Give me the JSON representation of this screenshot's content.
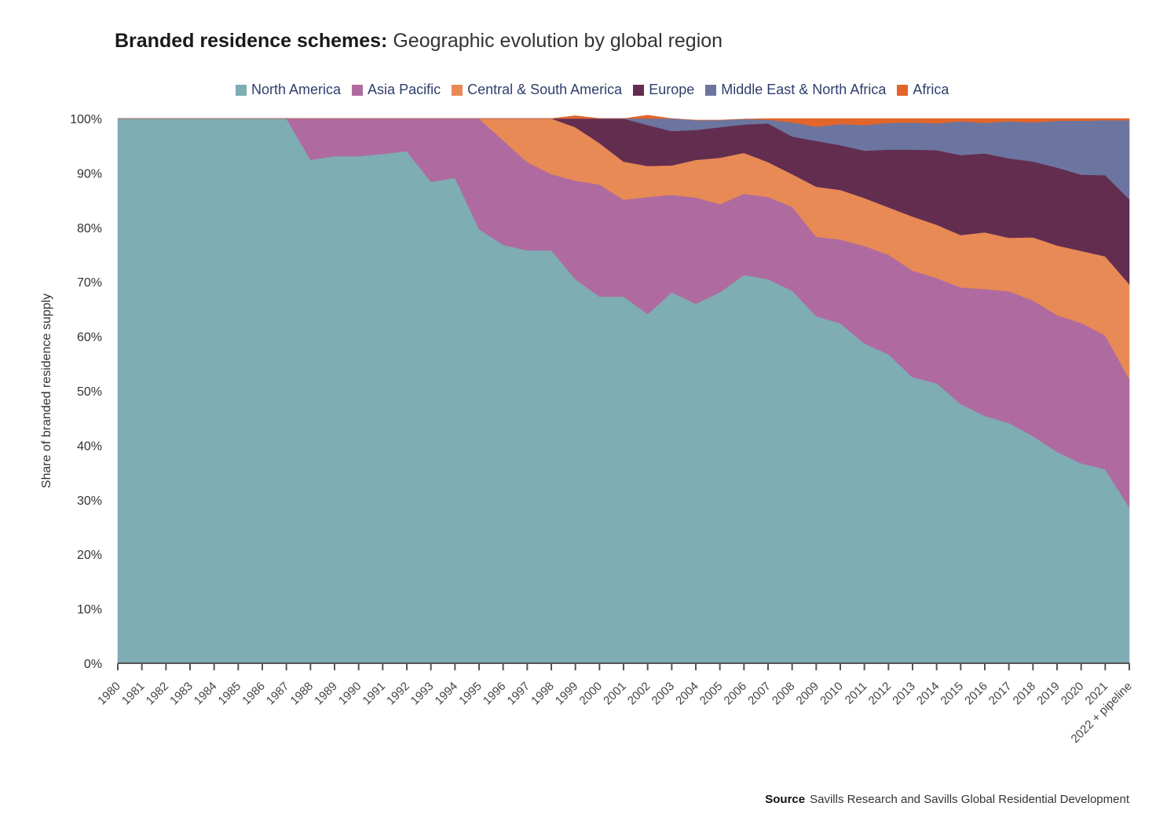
{
  "title_bold": "Branded residence schemes:",
  "title_rest": "Geographic evolution by global region",
  "source_label": "Source",
  "source_text": "Savills Research and Savills Global Residential Development",
  "chart_data": {
    "type": "area",
    "stacked": true,
    "normalized": true,
    "title": "Branded residence schemes: Geographic evolution by global region",
    "xlabel": "",
    "ylabel": "Share of branded residence supply",
    "ylim": [
      0,
      100
    ],
    "yticks": [
      "0%",
      "10%",
      "20%",
      "30%",
      "40%",
      "50%",
      "60%",
      "70%",
      "80%",
      "90%",
      "100%"
    ],
    "legend_position": "top",
    "categories": [
      "1980",
      "1981",
      "1982",
      "1983",
      "1984",
      "1985",
      "1986",
      "1987",
      "1988",
      "1989",
      "1990",
      "1991",
      "1992",
      "1993",
      "1994",
      "1995",
      "1996",
      "1997",
      "1998",
      "1999",
      "2000",
      "2001",
      "2002",
      "2003",
      "2004",
      "2005",
      "2006",
      "2007",
      "2008",
      "2009",
      "2010",
      "2011",
      "2012",
      "2013",
      "2014",
      "2015",
      "2016",
      "2017",
      "2018",
      "2019",
      "2020",
      "2021",
      "2022 + pipeline"
    ],
    "series": [
      {
        "name": "North America",
        "color": "#7eadb3",
        "values": [
          100,
          100,
          100,
          100,
          100,
          100,
          100,
          100,
          92.4,
          93.1,
          93.1,
          93.5,
          94,
          88.4,
          89.1,
          79.7,
          76.8,
          75.8,
          75.8,
          70.5,
          67.3,
          67.3,
          64.1,
          68.1,
          66,
          68.1,
          71.3,
          70.5,
          68.4,
          63.7,
          62.4,
          58.7,
          56.7,
          52.5,
          51.4,
          47.6,
          45.4,
          44.1,
          41.7,
          38.8,
          36.7,
          35.6,
          28.6
        ],
        "data_name": "north-america"
      },
      {
        "name": "Asia Pacific",
        "color": "#af6ba0",
        "values": [
          0,
          0,
          0,
          0,
          0,
          0,
          0,
          0,
          7.6,
          6.9,
          6.9,
          6.5,
          6,
          11.6,
          10.9,
          20.3,
          19.2,
          16.2,
          14,
          18.1,
          20.6,
          17.8,
          21.5,
          17.9,
          19.5,
          16.2,
          14.9,
          15.1,
          15.4,
          14.6,
          15.4,
          17.9,
          18.3,
          19.6,
          19.3,
          21.4,
          23.3,
          24.2,
          24.9,
          25.1,
          25.8,
          24.6,
          23.6
        ],
        "data_name": "asia-pacific"
      },
      {
        "name": "Central & South America",
        "color": "#e88a55",
        "values": [
          0,
          0,
          0,
          0,
          0,
          0,
          0,
          0,
          0,
          0,
          0,
          0,
          0,
          0,
          0,
          0,
          4,
          8,
          10.2,
          9.8,
          7.6,
          7,
          5.7,
          5.4,
          6.9,
          8.5,
          7.5,
          6.4,
          6,
          9.2,
          9.1,
          8.8,
          8.7,
          9.9,
          9.8,
          9.6,
          10.4,
          9.8,
          11.6,
          12.8,
          13.2,
          14.5,
          17.4
        ],
        "data_name": "central-south-america"
      },
      {
        "name": "Europe",
        "color": "#632d50",
        "values": [
          0,
          0,
          0,
          0,
          0,
          0,
          0,
          0,
          0,
          0,
          0,
          0,
          0,
          0,
          0,
          0,
          0,
          0,
          0,
          2.1,
          4.5,
          7.9,
          7.5,
          6.3,
          5.5,
          5.6,
          5.2,
          7.1,
          6.9,
          8.4,
          8.2,
          8.7,
          10.6,
          12.3,
          13.7,
          14.7,
          14.5,
          14.6,
          13.9,
          14.3,
          14,
          14.9,
          15.6
        ],
        "data_name": "europe"
      },
      {
        "name": "Middle East & North Africa",
        "color": "#6c759f",
        "values": [
          0,
          0,
          0,
          0,
          0,
          0,
          0,
          0,
          0,
          0,
          0,
          0,
          0,
          0,
          0,
          0,
          0,
          0,
          0,
          0,
          0,
          0,
          1.8,
          2.3,
          1.8,
          1.3,
          1,
          0.7,
          2.6,
          2.6,
          3.9,
          4.7,
          4.9,
          5,
          4.9,
          6.2,
          5.6,
          6.8,
          7.2,
          8.6,
          9.9,
          10.1,
          14.5
        ],
        "data_name": "middle-east-north-africa"
      },
      {
        "name": "Africa",
        "color": "#e2652b",
        "values": [
          0,
          0,
          0,
          0,
          0,
          0,
          0,
          0,
          0,
          0,
          0,
          0,
          0,
          0,
          0,
          0,
          0,
          0,
          0,
          0,
          0,
          0,
          0,
          0,
          0,
          0,
          0,
          0.2,
          0.7,
          1.5,
          1,
          1.2,
          0.8,
          0.7,
          0.9,
          0.5,
          0.8,
          0.5,
          0.7,
          0.4,
          0.4,
          0.3,
          0.3
        ],
        "data_name": "africa"
      }
    ]
  }
}
